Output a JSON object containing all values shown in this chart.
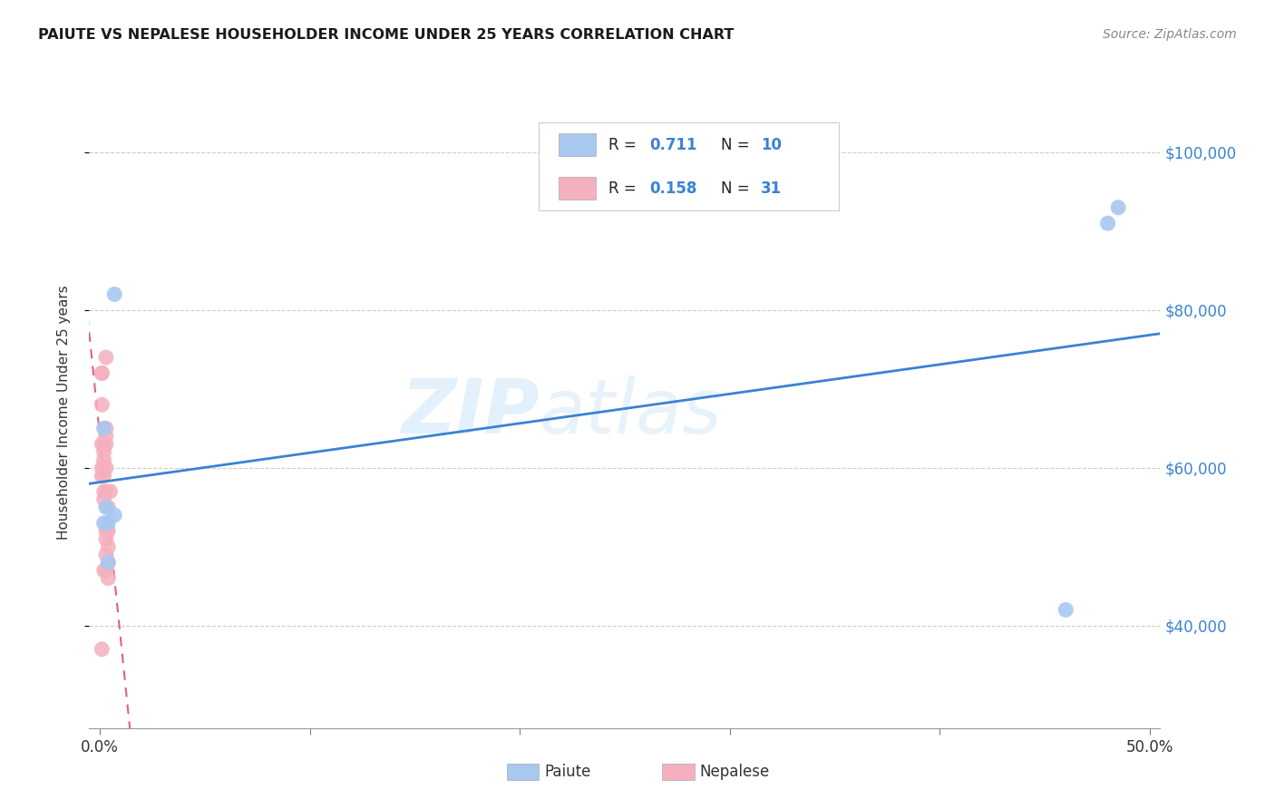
{
  "title": "PAIUTE VS NEPALESE HOUSEHOLDER INCOME UNDER 25 YEARS CORRELATION CHART",
  "source": "Source: ZipAtlas.com",
  "ylabel": "Householder Income Under 25 years",
  "yticks": [
    40000,
    60000,
    80000,
    100000
  ],
  "ytick_labels": [
    "$40,000",
    "$60,000",
    "$80,000",
    "$100,000"
  ],
  "paiute_R": "0.711",
  "paiute_N": "10",
  "nepalese_R": "0.158",
  "nepalese_N": "31",
  "paiute_color": "#a8c8f0",
  "nepalese_color": "#f5b0bf",
  "trendline_paiute_color": "#3a82d4",
  "trendline_nepalese_color": "#e06080",
  "watermark_zip": "ZIP",
  "watermark_atlas": "atlas",
  "paiute_x": [
    0.002,
    0.002,
    0.003,
    0.004,
    0.004,
    0.007,
    0.007,
    0.46,
    0.48,
    0.485
  ],
  "paiute_y": [
    53000,
    65000,
    55000,
    48000,
    53000,
    82000,
    54000,
    42000,
    91000,
    93000
  ],
  "nepalese_x": [
    0.001,
    0.001,
    0.001,
    0.001,
    0.001,
    0.001,
    0.001,
    0.002,
    0.002,
    0.002,
    0.002,
    0.002,
    0.002,
    0.002,
    0.002,
    0.003,
    0.003,
    0.003,
    0.003,
    0.003,
    0.003,
    0.003,
    0.003,
    0.003,
    0.003,
    0.004,
    0.004,
    0.004,
    0.004,
    0.004,
    0.005
  ],
  "nepalese_y": [
    37000,
    60000,
    63000,
    68000,
    72000,
    72000,
    59000,
    56000,
    57000,
    59000,
    60000,
    61000,
    62000,
    63000,
    47000,
    47000,
    49000,
    51000,
    52000,
    57000,
    60000,
    63000,
    64000,
    65000,
    74000,
    46000,
    48000,
    50000,
    52000,
    55000,
    57000
  ],
  "xlim": [
    0.0,
    0.5
  ],
  "ylim": [
    27000,
    107000
  ],
  "figsize": [
    14.06,
    8.92
  ],
  "dpi": 100
}
